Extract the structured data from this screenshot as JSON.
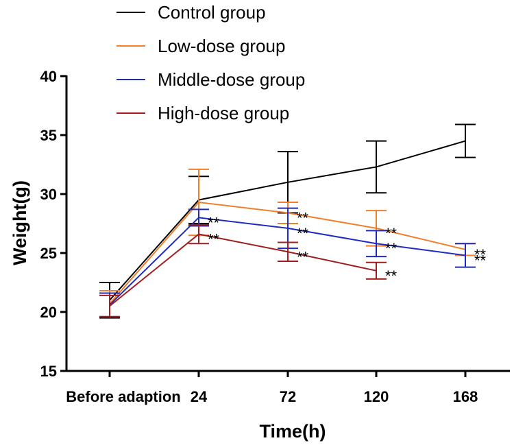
{
  "chart_data": {
    "type": "line",
    "title": "",
    "xlabel": "Time(h)",
    "ylabel": "Weight(g)",
    "categories": [
      "Before adaption",
      "24",
      "72",
      "120",
      "168"
    ],
    "ylim": [
      15,
      40
    ],
    "yticks": [
      "15",
      "20",
      "25",
      "30",
      "35",
      "40"
    ],
    "legend_position": "top-center",
    "series": [
      {
        "name": "Control group",
        "color": "#000000",
        "values": [
          21.0,
          29.5,
          31.0,
          32.3,
          34.5
        ],
        "errors": [
          1.5,
          2.0,
          2.6,
          2.2,
          1.4
        ],
        "annotations": [
          "",
          "",
          "",
          "",
          ""
        ]
      },
      {
        "name": "Low-dose group",
        "color": "#ef7f2c",
        "values": [
          20.7,
          29.3,
          28.4,
          27.1,
          25.3
        ],
        "errors": [
          1.1,
          2.8,
          0.9,
          1.5,
          0.5
        ],
        "annotations": [
          "",
          "",
          "**",
          "**",
          "**"
        ]
      },
      {
        "name": "Middle-dose group",
        "color": "#1f2bc0",
        "values": [
          20.6,
          28.0,
          27.1,
          25.8,
          24.8
        ],
        "errors": [
          1.0,
          0.7,
          1.7,
          1.1,
          1.0
        ],
        "annotations": [
          "",
          "**",
          "**",
          "**",
          "**"
        ]
      },
      {
        "name": "High-dose group",
        "color": "#a01e1e",
        "values": [
          20.5,
          26.6,
          25.1,
          23.5,
          null
        ],
        "errors": [
          0.9,
          0.8,
          0.8,
          0.7,
          null
        ],
        "annotations": [
          "",
          "**",
          "**",
          "**",
          ""
        ]
      }
    ]
  }
}
